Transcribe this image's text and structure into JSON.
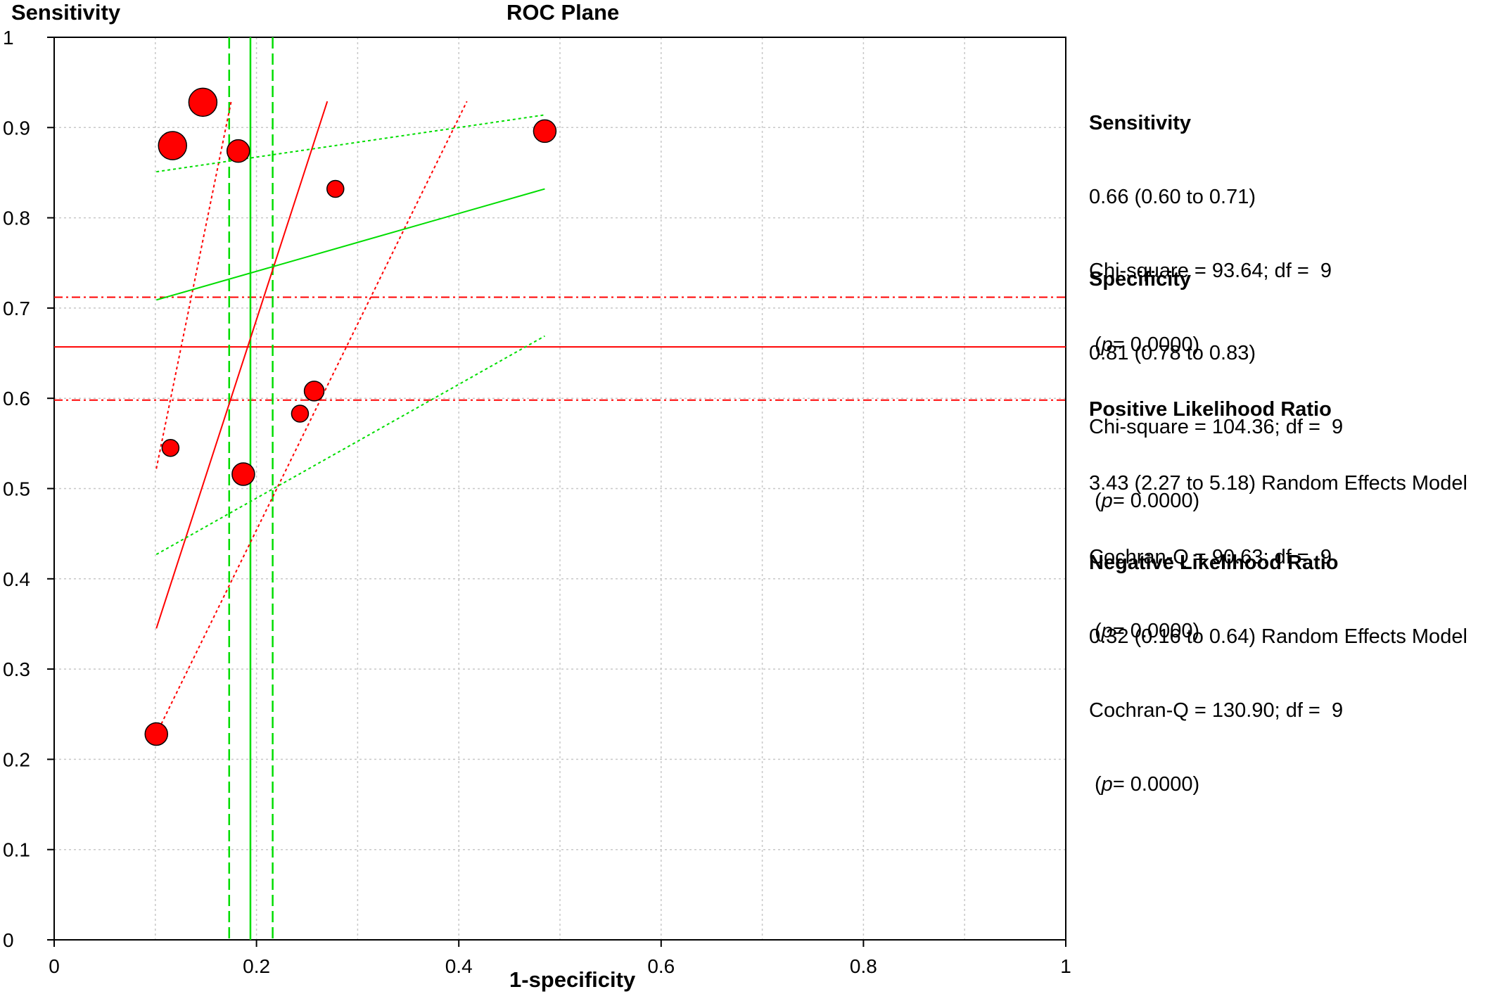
{
  "chart_data": {
    "type": "scatter",
    "title": "ROC Plane",
    "xlabel": "1-specificity",
    "ylabel": "Sensitivity",
    "xlim": [
      0,
      1
    ],
    "ylim": [
      0,
      1
    ],
    "x_ticks": [
      "0",
      "0.2",
      "0.4",
      "0.6",
      "0.8",
      "1"
    ],
    "y_ticks": [
      "0",
      "0.1",
      "0.2",
      "0.3",
      "0.4",
      "0.5",
      "0.6",
      "0.7",
      "0.8",
      "0.9",
      "1"
    ],
    "grid": true,
    "points": [
      {
        "x": 0.147,
        "y": 0.928,
        "size": 3
      },
      {
        "x": 0.117,
        "y": 0.88,
        "size": 3
      },
      {
        "x": 0.182,
        "y": 0.874,
        "size": 2
      },
      {
        "x": 0.485,
        "y": 0.896,
        "size": 2
      },
      {
        "x": 0.278,
        "y": 0.832,
        "size": 1
      },
      {
        "x": 0.257,
        "y": 0.608,
        "size": 1.5
      },
      {
        "x": 0.243,
        "y": 0.583,
        "size": 1
      },
      {
        "x": 0.115,
        "y": 0.545,
        "size": 1
      },
      {
        "x": 0.187,
        "y": 0.516,
        "size": 2
      },
      {
        "x": 0.101,
        "y": 0.228,
        "size": 2
      }
    ],
    "sensitivity_pooled": {
      "estimate": 0.657,
      "ci": [
        0.598,
        0.712
      ]
    },
    "specificity_pooled_x": {
      "estimate": 0.194,
      "ci": [
        0.173,
        0.216
      ]
    },
    "plr_lines": {
      "estimate": [
        [
          0.101,
          0.345
        ],
        [
          0.27,
          0.929
        ]
      ],
      "ci_lower": [
        [
          0.101,
          0.228
        ],
        [
          0.408,
          0.929
        ]
      ],
      "ci_upper": [
        [
          0.101,
          0.522
        ],
        [
          0.175,
          0.929
        ]
      ]
    },
    "nlr_lines": {
      "estimate": [
        [
          0.101,
          0.709
        ],
        [
          0.485,
          0.832
        ]
      ],
      "ci_lower": [
        [
          0.101,
          0.427
        ],
        [
          0.485,
          0.669
        ]
      ],
      "ci_upper": [
        [
          0.101,
          0.851
        ],
        [
          0.485,
          0.914
        ]
      ]
    },
    "colors": {
      "points": "#ff0000",
      "sens_lines": "#ff0000",
      "spec_lines": "#00dd00"
    }
  },
  "stats": {
    "sensitivity": {
      "heading": "Sensitivity",
      "line1": "0.66 (0.60 to 0.71)",
      "line2": "Chi-square = 93.64; df =  9",
      "p_label": "p",
      "p_value": "= 0.0000)"
    },
    "specificity": {
      "heading": "Specificity",
      "line1": "0.81 (0.78 to 0.83)",
      "line2": "Chi-square = 104.36; df =  9",
      "p_label": "p",
      "p_value": "= 0.0000)"
    },
    "plr": {
      "heading": "Positive Likelihood Ratio",
      "line1": "3.43 (2.27 to 5.18) Random Effects Model",
      "line2": "Cochran-Q = 90.63; df =  9",
      "p_label": "p",
      "p_value": "= 0.0000)"
    },
    "nlr": {
      "heading": "Negative Likelihood Ratio",
      "line1": "0.32 (0.16 to 0.64) Random Effects Model",
      "line2": "Cochran-Q = 130.90; df =  9",
      "p_label": "p",
      "p_value": "= 0.0000)"
    }
  }
}
